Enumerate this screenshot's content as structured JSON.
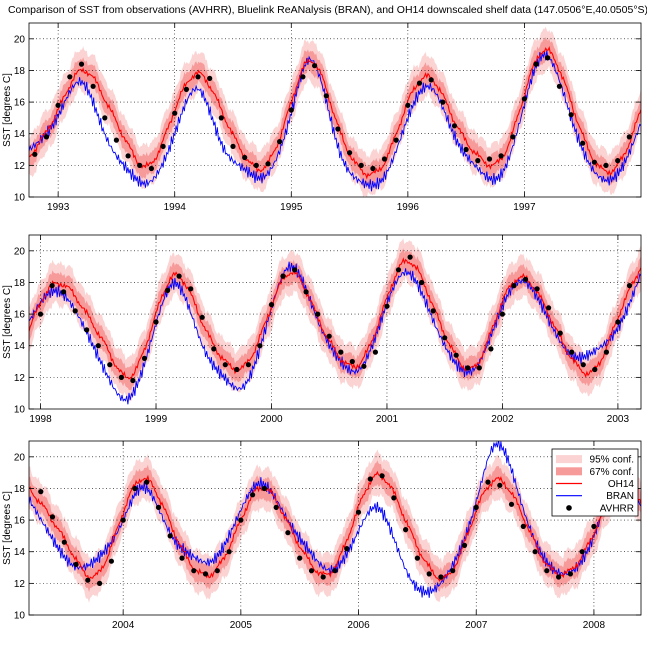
{
  "chart_data": {
    "type": "line",
    "title": "Comparison of SST from observations (AVHRR), Bluelink ReANalysis (BRAN), and OH14 downscaled shelf data (147.0506°E,40.0505°S)",
    "ylabel": "SST [degrees C]",
    "grid": true,
    "legend_position": "top-right of bottom panel",
    "legend": [
      "95% conf.",
      "67% conf.",
      "OH14",
      "BRAN",
      "AVHRR"
    ],
    "colors": {
      "ci95": "#fbd3d3",
      "ci67": "#f79a9a",
      "oh14": "#ff0000",
      "bran": "#0000ff",
      "avhrr": "#000000"
    },
    "panels": [
      {
        "xlim": [
          1992.75,
          1998.0
        ],
        "ylim": [
          10,
          21
        ],
        "xticks": [
          1993,
          1994,
          1995,
          1996,
          1997
        ],
        "yticks": [
          10,
          12,
          14,
          16,
          18,
          20
        ],
        "series": [
          {
            "name": "OH14",
            "x": [
              1992.75,
              1993.0,
              1993.2,
              1993.4,
              1993.6,
              1993.75,
              1994.0,
              1994.2,
              1994.4,
              1994.6,
              1994.75,
              1995.0,
              1995.15,
              1995.4,
              1995.6,
              1995.8,
              1996.0,
              1996.2,
              1996.4,
              1996.6,
              1996.8,
              1997.0,
              1997.15,
              1997.4,
              1997.6,
              1997.8,
              1998.0
            ],
            "y": [
              12.5,
              15.5,
              18.0,
              16.2,
              13.3,
              11.9,
              15.5,
              17.8,
              15.5,
              12.6,
              11.8,
              16.0,
              18.6,
              14.5,
              11.7,
              12.2,
              16.0,
              17.5,
              14.8,
              12.6,
              12.4,
              16.5,
              19.2,
              16.0,
              12.3,
              12.0,
              15.5
            ]
          },
          {
            "name": "BRAN",
            "x": [
              1992.75,
              1993.0,
              1993.2,
              1993.4,
              1993.6,
              1993.75,
              1994.0,
              1994.2,
              1994.4,
              1994.6,
              1994.75,
              1995.0,
              1995.15,
              1995.4,
              1995.6,
              1995.8,
              1996.0,
              1996.2,
              1996.4,
              1996.6,
              1996.8,
              1997.0,
              1997.15,
              1997.4,
              1997.6,
              1997.8,
              1998.0
            ],
            "y": [
              12.8,
              15.0,
              17.2,
              14.0,
              11.8,
              11.0,
              14.2,
              17.0,
              13.5,
              11.8,
              11.2,
              15.2,
              18.5,
              13.0,
              10.8,
              11.2,
              15.0,
              17.0,
              14.0,
              12.0,
              11.6,
              16.0,
              19.0,
              15.0,
              11.5,
              11.3,
              14.5
            ]
          },
          {
            "name": "AVHRR",
            "x": [
              1992.8,
              1992.9,
              1993.0,
              1993.1,
              1993.2,
              1993.3,
              1993.4,
              1993.5,
              1993.6,
              1993.7,
              1993.8,
              1993.9,
              1994.0,
              1994.1,
              1994.2,
              1994.3,
              1994.4,
              1994.5,
              1994.6,
              1994.7,
              1994.8,
              1994.9,
              1995.0,
              1995.1,
              1995.2,
              1995.3,
              1995.4,
              1995.5,
              1995.6,
              1995.7,
              1995.8,
              1995.9,
              1996.0,
              1996.1,
              1996.2,
              1996.3,
              1996.4,
              1996.5,
              1996.6,
              1996.7,
              1996.8,
              1996.9,
              1997.0,
              1997.1,
              1997.2,
              1997.3,
              1997.4,
              1997.5,
              1997.6,
              1997.7,
              1997.8,
              1997.9
            ],
            "y": [
              12.7,
              13.8,
              15.8,
              17.6,
              18.4,
              17.0,
              15.0,
              13.6,
              12.6,
              12.0,
              11.8,
              13.2,
              15.3,
              16.8,
              17.6,
              17.5,
              15.0,
              13.2,
              12.5,
              12.0,
              12.1,
              13.5,
              15.5,
              17.6,
              18.3,
              16.4,
              14.3,
              12.8,
              12.0,
              11.8,
              12.4,
              13.6,
              15.8,
              17.2,
              17.4,
              16.0,
              14.5,
              13.0,
              12.3,
              12.4,
              12.6,
              13.8,
              16.2,
              18.4,
              18.8,
              17.0,
              15.2,
              13.4,
              12.2,
              12.0,
              12.3,
              13.8
            ]
          }
        ]
      },
      {
        "xlim": [
          1997.9,
          2003.2
        ],
        "ylim": [
          10,
          21
        ],
        "xticks": [
          1998,
          1999,
          2000,
          2001,
          2002,
          2003
        ],
        "yticks": [
          10,
          12,
          14,
          16,
          18,
          20
        ],
        "series": [
          {
            "name": "OH14",
            "x": [
              1997.9,
              1998.1,
              1998.4,
              1998.6,
              1998.75,
              1999.0,
              1999.15,
              1999.4,
              1999.6,
              1999.75,
              2000.0,
              2000.15,
              2000.4,
              2000.6,
              2000.75,
              2001.0,
              2001.15,
              2001.4,
              2001.6,
              2001.75,
              2002.0,
              2002.15,
              2002.4,
              2002.6,
              2002.8,
              2003.0,
              2003.2
            ],
            "y": [
              15.0,
              17.8,
              16.0,
              13.5,
              12.0,
              16.0,
              18.4,
              15.5,
              13.0,
              12.6,
              16.5,
              18.6,
              15.8,
              13.2,
              12.8,
              17.0,
              19.3,
              16.5,
              13.3,
              12.6,
              16.8,
              18.3,
              16.0,
              13.2,
              12.5,
              15.8,
              19.0
            ]
          },
          {
            "name": "BRAN",
            "x": [
              1997.9,
              1998.1,
              1998.4,
              1998.6,
              1998.75,
              1999.0,
              1999.15,
              1999.4,
              1999.6,
              1999.75,
              2000.0,
              2000.15,
              2000.4,
              2000.6,
              2000.75,
              2001.0,
              2001.15,
              2001.4,
              2001.6,
              2001.75,
              2002.0,
              2002.15,
              2002.4,
              2002.6,
              2002.8,
              2003.0,
              2003.2
            ],
            "y": [
              15.5,
              17.5,
              15.0,
              12.0,
              10.8,
              15.5,
              18.0,
              14.0,
              11.8,
              11.2,
              16.2,
              18.8,
              15.5,
              13.0,
              12.5,
              16.8,
              18.8,
              15.8,
              13.0,
              12.6,
              16.5,
              18.0,
              15.5,
              13.2,
              13.5,
              15.0,
              18.5
            ]
          },
          {
            "name": "AVHRR",
            "x": [
              1998.0,
              1998.1,
              1998.2,
              1998.3,
              1998.4,
              1998.5,
              1998.6,
              1998.7,
              1998.8,
              1998.9,
              1999.0,
              1999.1,
              1999.2,
              1999.3,
              1999.4,
              1999.5,
              1999.6,
              1999.7,
              1999.8,
              1999.9,
              2000.0,
              2000.1,
              2000.2,
              2000.3,
              2000.4,
              2000.5,
              2000.6,
              2000.7,
              2000.8,
              2000.9,
              2001.0,
              2001.1,
              2001.2,
              2001.3,
              2001.4,
              2001.5,
              2001.6,
              2001.7,
              2001.8,
              2001.9,
              2002.0,
              2002.1,
              2002.2,
              2002.3,
              2002.4,
              2002.5,
              2002.6,
              2002.7,
              2002.8,
              2002.9,
              2003.0,
              2003.1
            ],
            "y": [
              16.0,
              17.8,
              17.4,
              16.2,
              15.0,
              14.0,
              12.8,
              12.0,
              11.8,
              13.2,
              15.5,
              17.5,
              18.4,
              17.6,
              15.8,
              13.8,
              12.8,
              12.5,
              12.8,
              14.0,
              16.6,
              18.4,
              18.8,
              17.4,
              16.0,
              14.6,
              13.6,
              13.0,
              12.7,
              13.6,
              16.5,
              18.8,
              19.6,
              18.0,
              16.2,
              14.5,
              13.4,
              12.6,
              12.6,
              13.8,
              16.0,
              17.8,
              18.2,
              17.6,
              16.4,
              14.8,
              13.6,
              12.8,
              12.5,
              13.6,
              15.5,
              17.8
            ]
          }
        ]
      },
      {
        "xlim": [
          2003.2,
          2008.4
        ],
        "ylim": [
          10,
          21
        ],
        "xticks": [
          2004,
          2005,
          2006,
          2007,
          2008
        ],
        "yticks": [
          10,
          12,
          14,
          16,
          18,
          20
        ],
        "series": [
          {
            "name": "OH14",
            "x": [
              2003.2,
              2003.4,
              2003.6,
              2003.75,
              2004.0,
              2004.15,
              2004.4,
              2004.6,
              2004.75,
              2005.0,
              2005.15,
              2005.4,
              2005.6,
              2005.75,
              2006.0,
              2006.15,
              2006.4,
              2006.6,
              2006.75,
              2007.0,
              2007.15,
              2007.4,
              2007.6,
              2007.75,
              2008.0,
              2008.2,
              2008.4
            ],
            "y": [
              18.0,
              16.0,
              13.5,
              12.4,
              16.5,
              18.6,
              15.8,
              13.0,
              12.6,
              16.0,
              18.0,
              15.8,
              13.2,
              12.6,
              16.8,
              18.8,
              16.0,
              13.0,
              12.4,
              16.6,
              18.5,
              16.2,
              13.2,
              12.6,
              15.2,
              18.0,
              17.0
            ]
          },
          {
            "name": "BRAN",
            "x": [
              2003.2,
              2003.4,
              2003.6,
              2003.75,
              2004.0,
              2004.15,
              2004.4,
              2004.6,
              2004.75,
              2005.0,
              2005.15,
              2005.4,
              2005.6,
              2005.75,
              2006.0,
              2006.15,
              2006.4,
              2006.6,
              2006.75,
              2007.0,
              2007.15,
              2007.4,
              2007.6,
              2007.75,
              2008.0,
              2008.2,
              2008.4
            ],
            "y": [
              17.5,
              15.0,
              13.2,
              13.5,
              16.0,
              18.0,
              15.0,
              13.5,
              13.2,
              16.5,
              18.2,
              16.0,
              14.0,
              13.0,
              15.5,
              17.0,
              13.0,
              11.5,
              12.5,
              17.0,
              20.5,
              16.5,
              13.2,
              12.5,
              15.0,
              18.5,
              17.0
            ]
          },
          {
            "name": "AVHRR",
            "x": [
              2003.3,
              2003.4,
              2003.5,
              2003.6,
              2003.7,
              2003.8,
              2003.9,
              2004.0,
              2004.1,
              2004.2,
              2004.3,
              2004.4,
              2004.5,
              2004.6,
              2004.7,
              2004.8,
              2004.9,
              2005.0,
              2005.1,
              2005.2,
              2005.3,
              2005.4,
              2005.5,
              2005.6,
              2005.7,
              2005.8,
              2005.9,
              2006.0,
              2006.1,
              2006.2,
              2006.3,
              2006.4,
              2006.5,
              2006.6,
              2006.7,
              2006.8,
              2006.9,
              2007.0,
              2007.1,
              2007.2,
              2007.3,
              2007.4,
              2007.5,
              2007.6,
              2007.7,
              2007.8,
              2007.9,
              2008.0,
              2008.1,
              2008.2,
              2008.3
            ],
            "y": [
              17.8,
              16.2,
              14.6,
              13.2,
              12.2,
              12.0,
              13.4,
              16.0,
              18.0,
              18.4,
              16.8,
              15.0,
              13.6,
              12.8,
              12.6,
              12.8,
              14.0,
              16.0,
              17.6,
              18.0,
              16.8,
              15.2,
              13.6,
              12.8,
              12.4,
              12.8,
              14.2,
              16.5,
              18.6,
              18.8,
              17.4,
              15.4,
              13.6,
              12.6,
              12.4,
              12.8,
              14.4,
              16.8,
              18.4,
              18.2,
              17.0,
              15.6,
              14.0,
              12.8,
              12.4,
              12.6,
              14.0,
              15.6,
              17.8,
              18.4,
              16.8
            ]
          }
        ]
      }
    ]
  }
}
